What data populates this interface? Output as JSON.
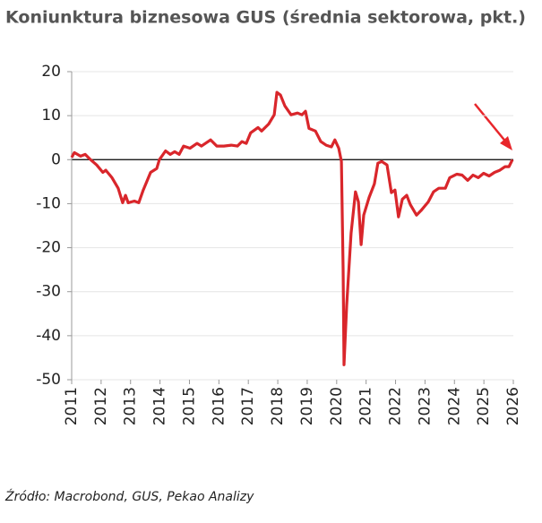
{
  "chart_data": {
    "type": "line",
    "title": "Koniunktura biznesowa GUS (średnia sektorowa, pkt.)",
    "source": "Źródło: Macrobond, GUS, Pekao Analizy",
    "xlim": [
      2011,
      2026
    ],
    "xticks": [
      2011,
      2012,
      2013,
      2014,
      2015,
      2016,
      2017,
      2018,
      2019,
      2020,
      2021,
      2022,
      2023,
      2024,
      2025,
      2026
    ],
    "ylim": [
      -50,
      20
    ],
    "yticks": [
      -50,
      -40,
      -30,
      -20,
      -10,
      0,
      10,
      20
    ],
    "grid": true,
    "series": [
      {
        "color": "#d9262b",
        "x": [
          2011.0,
          2011.09,
          2011.3,
          2011.46,
          2011.61,
          2011.85,
          2012.06,
          2012.16,
          2012.37,
          2012.58,
          2012.73,
          2012.83,
          2012.92,
          2013.13,
          2013.28,
          2013.43,
          2013.68,
          2013.89,
          2013.98,
          2014.19,
          2014.35,
          2014.5,
          2014.65,
          2014.8,
          2015.02,
          2015.26,
          2015.41,
          2015.72,
          2015.93,
          2016.17,
          2016.42,
          2016.63,
          2016.78,
          2016.93,
          2017.08,
          2017.33,
          2017.45,
          2017.69,
          2017.88,
          2017.97,
          2018.09,
          2018.24,
          2018.45,
          2018.67,
          2018.82,
          2018.94,
          2019.06,
          2019.28,
          2019.46,
          2019.64,
          2019.82,
          2019.94,
          2020.07,
          2020.16,
          2020.22,
          2020.25,
          2020.34,
          2020.49,
          2020.64,
          2020.74,
          2020.83,
          2020.92,
          2021.1,
          2021.28,
          2021.4,
          2021.53,
          2021.71,
          2021.86,
          2021.98,
          2022.1,
          2022.23,
          2022.38,
          2022.5,
          2022.71,
          2022.86,
          2023.11,
          2023.29,
          2023.47,
          2023.69,
          2023.84,
          2024.08,
          2024.26,
          2024.45,
          2024.63,
          2024.81,
          2024.99,
          2025.18,
          2025.36,
          2025.54,
          2025.72,
          2025.85,
          2025.97
        ],
        "values": [
          0.5,
          1.6,
          0.8,
          1.2,
          0.2,
          -1.2,
          -2.9,
          -2.4,
          -4.1,
          -6.5,
          -9.8,
          -8.1,
          -9.8,
          -9.4,
          -9.8,
          -6.9,
          -2.9,
          -2,
          0,
          2,
          1.2,
          1.8,
          1.2,
          3.1,
          2.6,
          3.7,
          3.1,
          4.5,
          3.1,
          3.1,
          3.3,
          3.1,
          4.1,
          3.7,
          6.1,
          7.3,
          6.5,
          8.1,
          10.2,
          15.3,
          14.7,
          12.2,
          10.2,
          10.6,
          10.2,
          11,
          7.1,
          6.5,
          4.1,
          3.3,
          2.9,
          4.5,
          2.6,
          -0.4,
          -24.8,
          -46.6,
          -33,
          -16.7,
          -7.3,
          -9.6,
          -19.3,
          -12.6,
          -8.6,
          -5.5,
          -0.8,
          -0.4,
          -1.2,
          -7.5,
          -6.9,
          -13,
          -9,
          -8.1,
          -10.2,
          -12.6,
          -11.6,
          -9.6,
          -7.3,
          -6.5,
          -6.5,
          -4.1,
          -3.3,
          -3.5,
          -4.7,
          -3.5,
          -4.1,
          -3.1,
          -3.7,
          -2.9,
          -2.4,
          -1.6,
          -1.6,
          0
        ]
      }
    ]
  }
}
